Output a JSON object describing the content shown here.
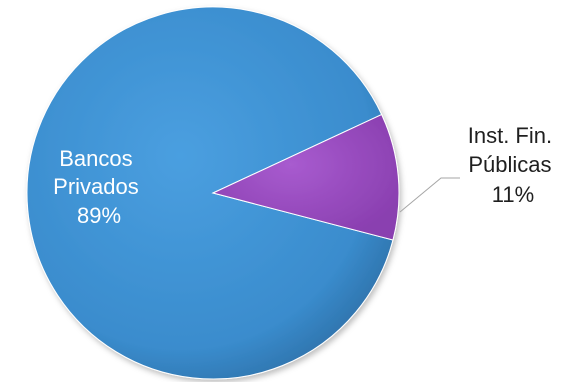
{
  "chart_data": {
    "type": "pie",
    "slices": [
      {
        "label_lines": [
          "Bancos",
          "Privados"
        ],
        "percent_label": "89%",
        "value": 89,
        "color": "#3b8ed0",
        "label_color": "#ffffff",
        "label_position": "inside"
      },
      {
        "label_lines": [
          "Inst. Fin.",
          "Públicas"
        ],
        "percent_label": "11%",
        "value": 11,
        "color": "#9b4fc0",
        "label_color": "#1f1f1f",
        "label_position": "outside"
      }
    ],
    "legend": "none"
  }
}
